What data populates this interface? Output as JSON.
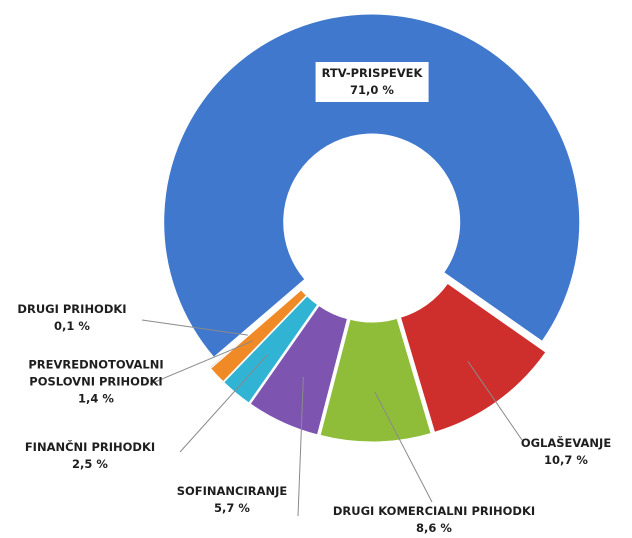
{
  "chart_data": {
    "type": "donut",
    "categories": [
      "RTV-PRISPEVEK",
      "OGLAŠEVANJE",
      "DRUGI KOMERCIALNI PRIHODKI",
      "SOFINANCIRANJE",
      "FINANČNI PRIHODKI",
      "PREVREDNOTOVALNI POSLOVNI PRIHODKI",
      "DRUGI PRIHODKI"
    ],
    "values": [
      71.0,
      10.7,
      8.6,
      5.7,
      2.5,
      1.4,
      0.1
    ],
    "value_labels": [
      "71,0 %",
      "10,7 %",
      "8,6 %",
      "5,7 %",
      "2,5 %",
      "1,4 %",
      "0,1 %"
    ],
    "colors": [
      "#3f78cc",
      "#cf2f2c",
      "#8fbd3a",
      "#7d55b0",
      "#31b3d4",
      "#ef8a26",
      "#a0a0a0"
    ]
  }
}
